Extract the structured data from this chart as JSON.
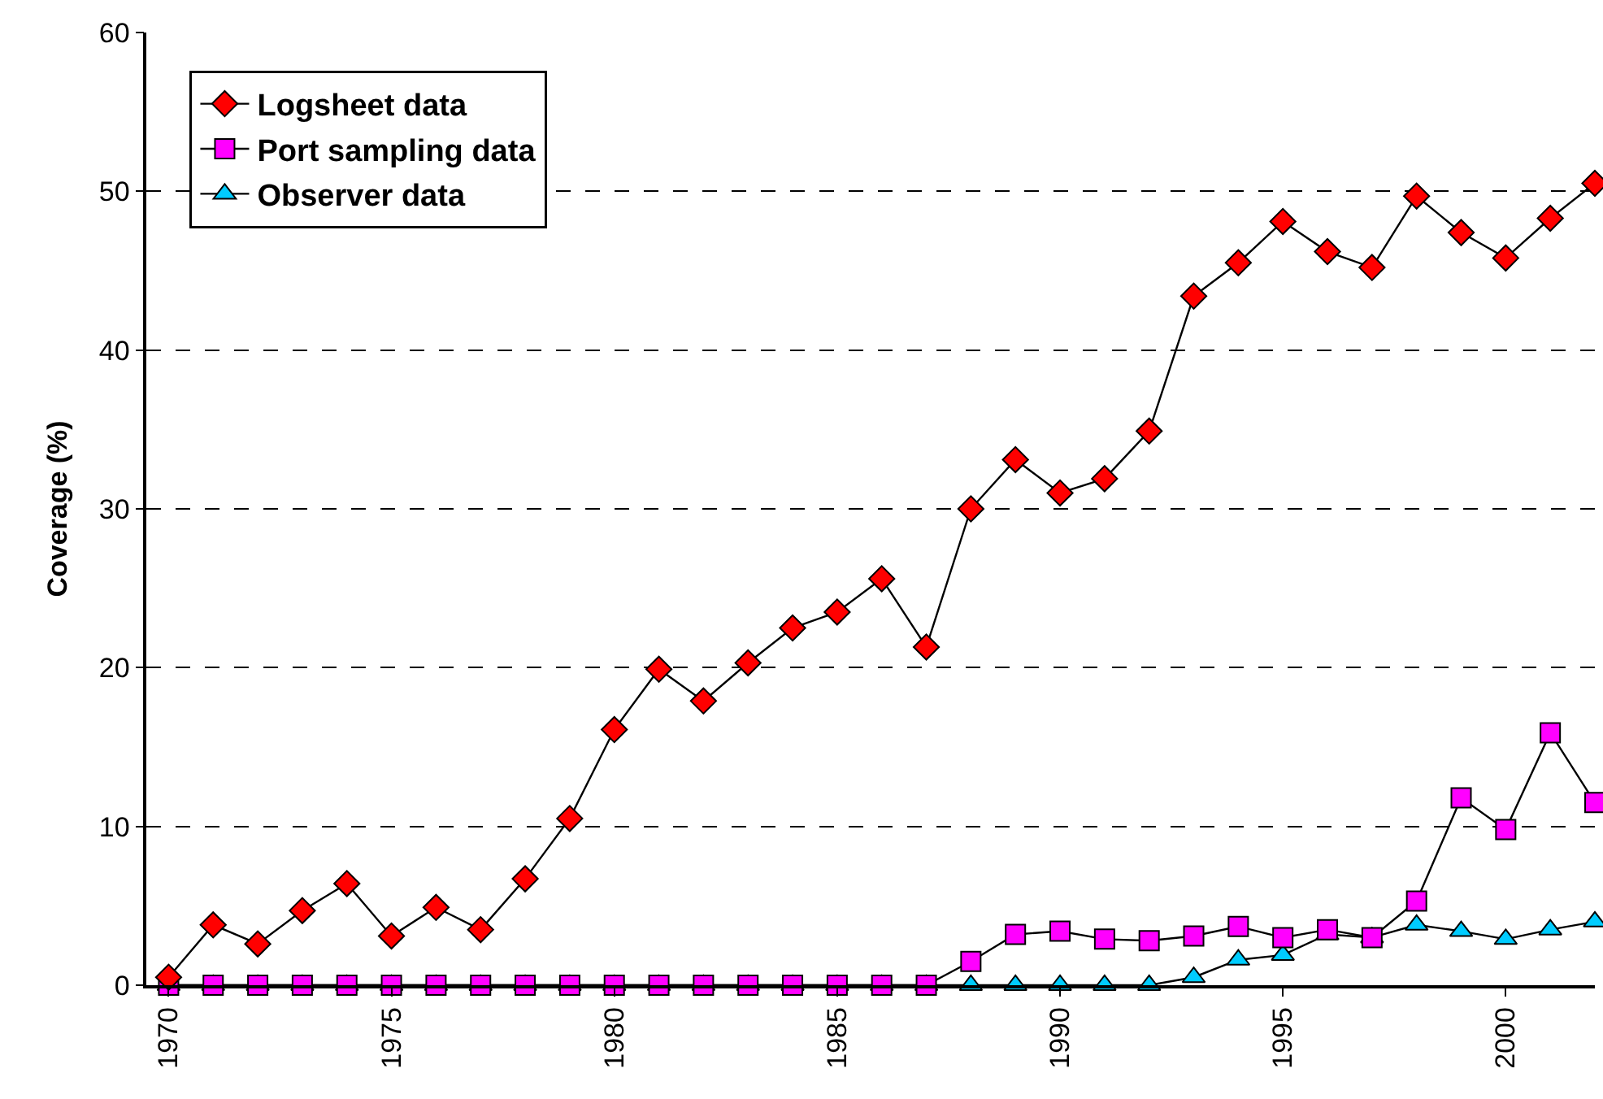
{
  "chart_data": {
    "type": "line",
    "ylabel": "Coverage (%)",
    "x": [
      1970,
      1971,
      1972,
      1973,
      1974,
      1975,
      1976,
      1977,
      1978,
      1979,
      1980,
      1981,
      1982,
      1983,
      1984,
      1985,
      1986,
      1987,
      1988,
      1989,
      1990,
      1991,
      1992,
      1993,
      1994,
      1995,
      1996,
      1997,
      1998,
      1999,
      2000,
      2001,
      2002
    ],
    "xlim": [
      1969.5,
      2002
    ],
    "xticks": [
      1970,
      1975,
      1980,
      1985,
      1990,
      1995,
      2000
    ],
    "ylim": [
      0,
      60
    ],
    "yticks": [
      0,
      10,
      20,
      30,
      40,
      50,
      60
    ],
    "grid": "y",
    "legend": "top left",
    "series": [
      {
        "name": "Logsheet data",
        "color": "#ff0000",
        "marker": "diamond",
        "values": [
          0.5,
          3.8,
          2.6,
          4.7,
          6.4,
          3.1,
          4.9,
          3.5,
          6.7,
          10.5,
          16.1,
          19.9,
          17.9,
          20.3,
          22.5,
          23.5,
          25.6,
          21.3,
          30.0,
          33.1,
          31.0,
          31.9,
          34.9,
          43.4,
          45.5,
          48.1,
          46.2,
          45.2,
          49.7,
          47.4,
          45.8,
          48.3,
          50.5
        ]
      },
      {
        "name": "Port sampling data",
        "color": "#ff00ff",
        "marker": "square",
        "values": [
          0,
          0,
          0,
          0,
          0,
          0,
          0,
          0,
          0,
          0,
          0,
          0,
          0,
          0,
          0,
          0,
          0,
          0,
          1.5,
          3.2,
          3.4,
          2.9,
          2.8,
          3.1,
          3.7,
          3.0,
          3.5,
          3.0,
          5.3,
          11.8,
          9.8,
          15.9,
          11.5
        ]
      },
      {
        "name": "Observer data",
        "color": "#00ccff",
        "marker": "triangle",
        "values": [
          0,
          0,
          0,
          0,
          0,
          0,
          0,
          0,
          0,
          0,
          0,
          0,
          0,
          0,
          0,
          0,
          0,
          0,
          0,
          0,
          0,
          0,
          0,
          0.5,
          1.6,
          1.9,
          3.2,
          3.0,
          3.8,
          3.4,
          2.9,
          3.5,
          4.0
        ]
      }
    ]
  }
}
